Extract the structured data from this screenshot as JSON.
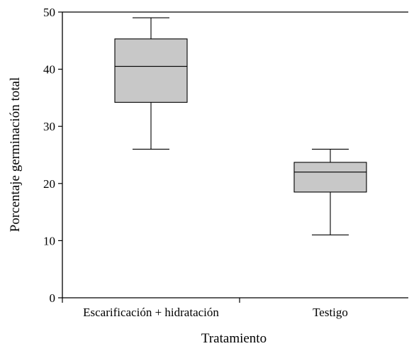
{
  "chart_data": {
    "type": "boxplot",
    "title": "",
    "xlabel": "Tratamiento",
    "ylabel": "Porcentaje germinación total",
    "ylim": [
      0,
      50
    ],
    "yticks": [
      0,
      10,
      20,
      30,
      40,
      50
    ],
    "categories": [
      "Escarificación + hidratación",
      "Testigo"
    ],
    "boxes": [
      {
        "category": "Escarificación + hidratación",
        "min": 26,
        "q1": 34.2,
        "median": 40.5,
        "q3": 45.3,
        "max": 49
      },
      {
        "category": "Testigo",
        "min": 11,
        "q1": 18.5,
        "median": 22,
        "q3": 23.7,
        "max": 26
      }
    ],
    "box_fill": "#c8c8c8",
    "line_color": "#000000",
    "grid": false,
    "legend": "none"
  }
}
